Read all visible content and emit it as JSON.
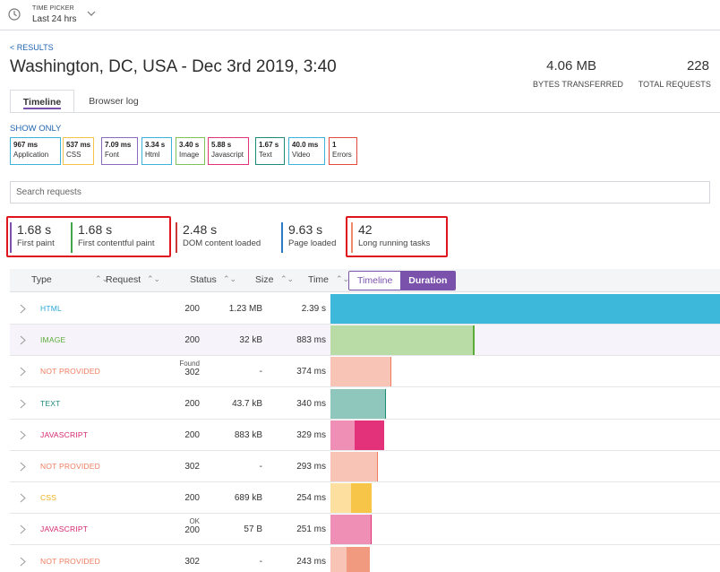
{
  "time_picker": {
    "label": "TIME PICKER",
    "value": "Last 24 hrs"
  },
  "back_link": "< RESULTS",
  "page_title": "Washington, DC, USA - Dec 3rd 2019, 3:40",
  "stats": [
    {
      "value": "4.06 MB",
      "label": "BYTES TRANSFERRED"
    },
    {
      "value": "228",
      "label": "TOTAL REQUESTS"
    }
  ],
  "tabs": [
    {
      "label": "Timeline",
      "active": true
    },
    {
      "label": "Browser log",
      "active": false
    }
  ],
  "show_only_label": "SHOW ONLY",
  "filters": [
    {
      "value": "967 ms",
      "label": "Application",
      "color": "#3db3d9"
    },
    {
      "value": "537 ms",
      "label": "CSS",
      "color": "#f5c24c"
    },
    {
      "value": "7.09 ms",
      "label": "Font",
      "color": "#8c6bbf"
    },
    {
      "value": "3.34 s",
      "label": "Html",
      "color": "#3db3d9"
    },
    {
      "value": "3.40 s",
      "label": "Image",
      "color": "#7fc25b"
    },
    {
      "value": "5.88 s",
      "label": "Javascript",
      "color": "#e3317a"
    },
    {
      "value": "1.67 s",
      "label": "Text",
      "color": "#1f8a7a"
    },
    {
      "value": "40.0 ms",
      "label": "Video",
      "color": "#3db3d9"
    },
    {
      "value": "1",
      "label": "Errors",
      "color": "#e34a3c"
    }
  ],
  "search": {
    "placeholder": "Search requests",
    "value": ""
  },
  "metrics": [
    {
      "value": "1.68 s",
      "label": "First paint",
      "color": "#7b52ab"
    },
    {
      "value": "1.68 s",
      "label": "First contentful paint",
      "color": "#3fa64b"
    },
    {
      "value": "2.48 s",
      "label": "DOM content loaded",
      "color": "#c93a3a"
    },
    {
      "value": "9.63 s",
      "label": "Page loaded",
      "color": "#2b7bc4"
    },
    {
      "value": "42",
      "label": "Long running tasks",
      "color": "#f08a6a"
    }
  ],
  "table": {
    "headers": {
      "type": "Type",
      "request": "Request",
      "status": "Status",
      "size": "Size",
      "time": "Time"
    },
    "view_toggle": {
      "timeline": "Timeline",
      "duration": "Duration",
      "selected": "Duration"
    },
    "rows": [
      {
        "type": "HTML",
        "status_text": "",
        "status": "200",
        "size": "1.23 MB",
        "time": "2.39 s",
        "type_color": "#2aa7d6",
        "bar_light": "#3db8db",
        "bar_dark": "#3db8db",
        "split": 1.0,
        "duration_ms": 2390
      },
      {
        "type": "IMAGE",
        "status_text": "",
        "status": "200",
        "size": "32 kB",
        "time": "883 ms",
        "type_color": "#5aab3a",
        "bar_light": "#b9dba6",
        "bar_dark": "#5aab3a",
        "split": 0.99,
        "duration_ms": 883
      },
      {
        "type": "NOT PROVIDED",
        "status_text": "Found",
        "status": "302",
        "size": "-",
        "time": "374 ms",
        "type_color": "#f07c5f",
        "bar_light": "#f7c4b5",
        "bar_dark": "#f07c5f",
        "split": 0.98,
        "duration_ms": 374
      },
      {
        "type": "TEXT",
        "status_text": "",
        "status": "200",
        "size": "43.7 kB",
        "time": "340 ms",
        "type_color": "#1f8a7a",
        "bar_light": "#8fc7bd",
        "bar_dark": "#1f8a7a",
        "split": 0.98,
        "duration_ms": 340
      },
      {
        "type": "JAVASCRIPT",
        "status_text": "",
        "status": "200",
        "size": "883 kB",
        "time": "329 ms",
        "type_color": "#d6266e",
        "bar_light": "#f08fb5",
        "bar_dark": "#e3317a",
        "split": 0.45,
        "duration_ms": 329
      },
      {
        "type": "NOT PROVIDED",
        "status_text": "",
        "status": "302",
        "size": "-",
        "time": "293 ms",
        "type_color": "#f07c5f",
        "bar_light": "#f7c4b5",
        "bar_dark": "#f07c5f",
        "split": 0.98,
        "duration_ms": 293
      },
      {
        "type": "CSS",
        "status_text": "",
        "status": "200",
        "size": "689 kB",
        "time": "254 ms",
        "type_color": "#f2b01e",
        "bar_light": "#fde0a0",
        "bar_dark": "#f7c548",
        "split": 0.5,
        "duration_ms": 254
      },
      {
        "type": "JAVASCRIPT",
        "status_text": "OK",
        "status": "200",
        "size": "57 B",
        "time": "251 ms",
        "type_color": "#d6266e",
        "bar_light": "#f08fb5",
        "bar_dark": "#e3317a",
        "split": 0.98,
        "duration_ms": 251
      },
      {
        "type": "NOT PROVIDED",
        "status_text": "",
        "status": "302",
        "size": "-",
        "time": "243 ms",
        "type_color": "#f07c5f",
        "bar_light": "#f7c4b5",
        "bar_dark": "#f29a80",
        "split": 0.4,
        "duration_ms": 243
      }
    ]
  }
}
